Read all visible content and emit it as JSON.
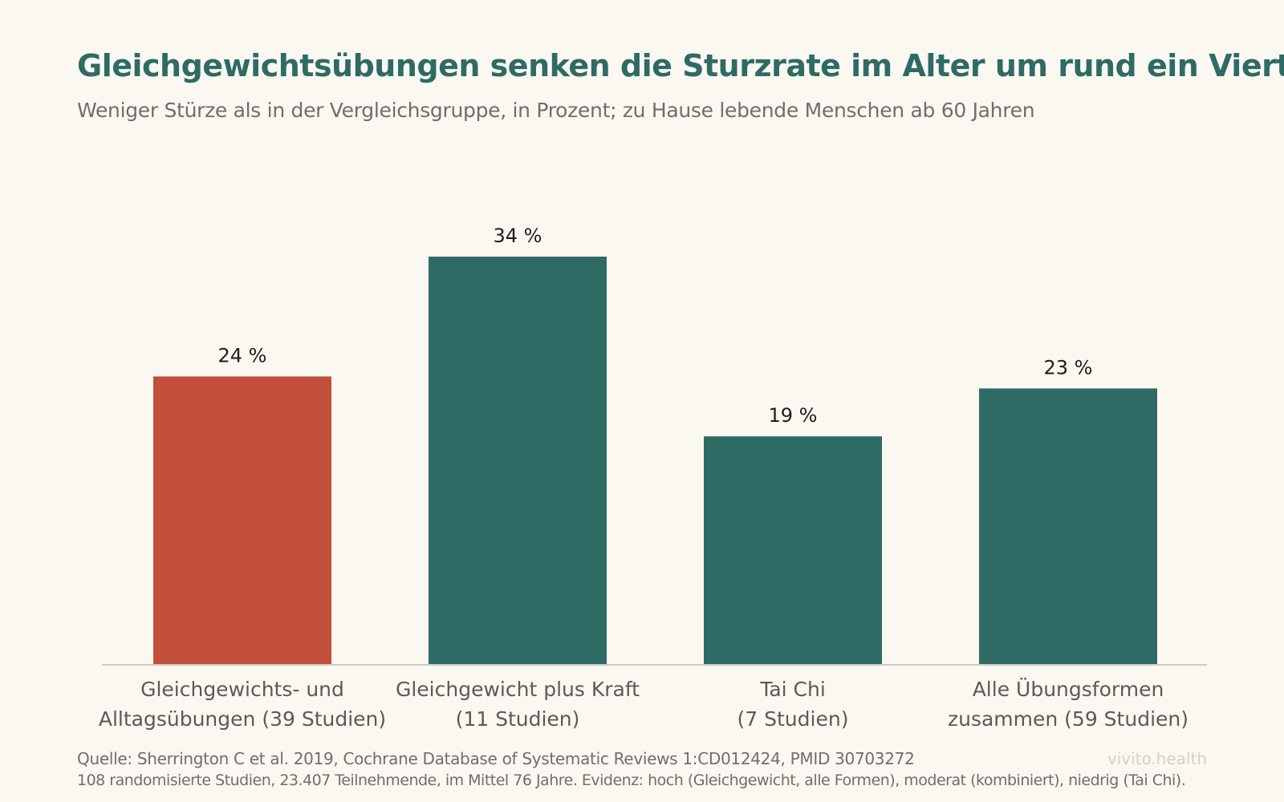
{
  "header": {
    "title": "Gleichgewichtsübungen senken die Sturzrate im Alter um rund ein Viertel",
    "subtitle": "Weniger Stürze als in der Vergleichsgruppe, in Prozent; zu Hause lebende Menschen ab 60 Jahren"
  },
  "colors": {
    "title": "#2e6b64",
    "highlight": "#c24f39",
    "bar": "#2e6b64",
    "background": "#fbf8f2",
    "axis": "#cfcac3"
  },
  "chart_data": {
    "type": "bar",
    "categories": [
      [
        "Gleichgewichts- und",
        "Alltagsübungen (39 Studien)"
      ],
      [
        "Gleichgewicht plus Kraft",
        "(11 Studien)"
      ],
      [
        "Tai Chi",
        "(7 Studien)"
      ],
      [
        "Alle Übungsformen",
        "zusammen (59 Studien)"
      ]
    ],
    "values": [
      24,
      34,
      19,
      23
    ],
    "value_labels": [
      "24 %",
      "34 %",
      "19 %",
      "23 %"
    ],
    "highlight_index": 0,
    "ylim": [
      0,
      34
    ],
    "grid": false,
    "legend": "none"
  },
  "footer": {
    "source": "Quelle: Sherrington C et al. 2019, Cochrane Database of Systematic Reviews 1:CD012424, PMID 30703272",
    "note": "108 randomisierte Studien, 23.407 Teilnehmende, im Mittel 76 Jahre. Evidenz: hoch (Gleichgewicht, alle Formen), moderat (kombiniert), niedrig (Tai Chi).",
    "brand": "vivito.health"
  }
}
